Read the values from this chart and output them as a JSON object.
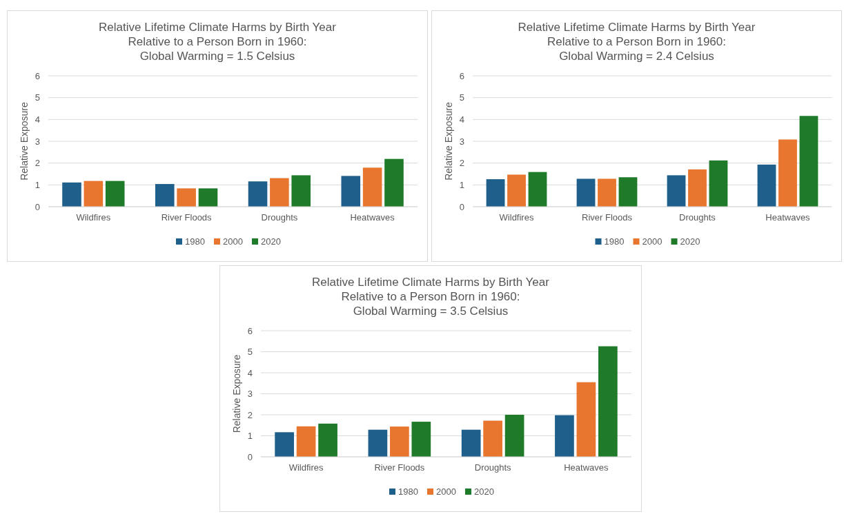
{
  "chart_data": [
    {
      "type": "bar",
      "title": "Relative Lifetime Climate Harms by Birth Year\nRelative to a Person Born in 1960:\nGlobal Warming = 1.5 Celsius",
      "ylabel": "Relative Exposure",
      "categories": [
        "Wildfires",
        "River Floods",
        "Droughts",
        "Heatwaves"
      ],
      "series": [
        {
          "name": "1980",
          "color": "#1f5f8b",
          "values": [
            1.11,
            1.04,
            1.16,
            1.41
          ]
        },
        {
          "name": "2000",
          "color": "#e8762f",
          "values": [
            1.18,
            0.84,
            1.31,
            1.79
          ]
        },
        {
          "name": "2020",
          "color": "#1f7a2a",
          "values": [
            1.18,
            0.84,
            1.44,
            2.19
          ]
        }
      ],
      "ylim": [
        0,
        6
      ],
      "yticks": [
        0,
        1,
        2,
        3,
        4,
        5,
        6
      ],
      "grid": "y",
      "legend": "bottom"
    },
    {
      "type": "bar",
      "title": "Relative Lifetime Climate Harms by Birth Year\nRelative to a Person Born in 1960:\nGlobal Warming = 2.4 Celsius",
      "ylabel": "Relative Exposure",
      "categories": [
        "Wildfires",
        "River Floods",
        "Droughts",
        "Heatwaves"
      ],
      "series": [
        {
          "name": "1980",
          "color": "#1f5f8b",
          "values": [
            1.26,
            1.28,
            1.44,
            1.93
          ]
        },
        {
          "name": "2000",
          "color": "#e8762f",
          "values": [
            1.47,
            1.28,
            1.71,
            3.08
          ]
        },
        {
          "name": "2020",
          "color": "#1f7a2a",
          "values": [
            1.59,
            1.35,
            2.12,
            4.16
          ]
        }
      ],
      "ylim": [
        0,
        6
      ],
      "yticks": [
        0,
        1,
        2,
        3,
        4,
        5,
        6
      ],
      "grid": "y",
      "legend": "bottom"
    },
    {
      "type": "bar",
      "title": "Relative Lifetime Climate Harms by Birth Year\nRelative to a Person Born in 1960:\nGlobal Warming = 3.5 Celsius",
      "ylabel": "Relative Exposure",
      "categories": [
        "Wildfires",
        "River Floods",
        "Droughts",
        "Heatwaves"
      ],
      "series": [
        {
          "name": "1980",
          "color": "#1f5f8b",
          "values": [
            1.17,
            1.29,
            1.29,
            1.98
          ]
        },
        {
          "name": "2000",
          "color": "#e8762f",
          "values": [
            1.45,
            1.44,
            1.72,
            3.55
          ]
        },
        {
          "name": "2020",
          "color": "#1f7a2a",
          "values": [
            1.58,
            1.67,
            2.0,
            5.26
          ]
        }
      ],
      "ylim": [
        0,
        6
      ],
      "yticks": [
        0,
        1,
        2,
        3,
        4,
        5,
        6
      ],
      "grid": "y",
      "legend": "bottom"
    }
  ]
}
